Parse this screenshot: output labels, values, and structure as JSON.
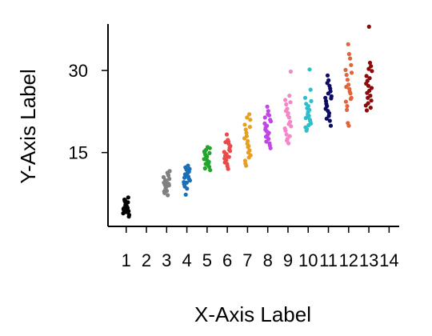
{
  "chart_data": {
    "type": "scatter",
    "title": "",
    "xlabel": "X-Axis Label",
    "ylabel": "Y-Axis Label",
    "xlim": [
      0.1,
      14.5
    ],
    "ylim": [
      1.5,
      38.5
    ],
    "x_ticks": [
      1,
      2,
      3,
      4,
      5,
      6,
      7,
      8,
      9,
      10,
      11,
      12,
      13,
      14
    ],
    "y_ticks": [
      15,
      30
    ],
    "grid": false,
    "jitter_width": 0.3,
    "series": [
      {
        "x": 1,
        "color": "#000000",
        "values": [
          3.9,
          4.3,
          4.8,
          5.2,
          5.6,
          6.1,
          4.5,
          3.6,
          6.8,
          5.0,
          4.1,
          5.4,
          6.4,
          4.7,
          3.3,
          5.9,
          4.4,
          5.1,
          6.3,
          4.9
        ]
      },
      {
        "x": 3,
        "color": "#808080",
        "values": [
          7.2,
          8.0,
          8.6,
          9.1,
          9.5,
          10.2,
          10.8,
          11.3,
          9.8,
          8.3,
          7.6,
          10.5,
          9.0,
          11.0,
          8.9,
          9.6,
          10.0,
          7.9,
          11.6,
          9.3
        ]
      },
      {
        "x": 4,
        "color": "#1a6fb5",
        "values": [
          7.3,
          8.8,
          9.6,
          10.1,
          10.6,
          11.2,
          11.9,
          12.3,
          10.4,
          9.9,
          11.5,
          12.6,
          8.4,
          10.8,
          11.0,
          9.2,
          12.0,
          10.3,
          11.4,
          9.5
        ]
      },
      {
        "x": 5,
        "color": "#22a52a",
        "values": [
          11.8,
          12.4,
          13.0,
          13.5,
          14.0,
          14.6,
          15.2,
          15.8,
          13.3,
          12.7,
          14.3,
          15.5,
          12.1,
          13.8,
          14.9,
          13.1,
          16.0,
          14.1,
          12.9,
          15.0
        ]
      },
      {
        "x": 6,
        "color": "#ec4a4a",
        "values": [
          12.0,
          12.9,
          13.6,
          14.4,
          15.1,
          15.9,
          16.6,
          17.3,
          18.3,
          14.0,
          13.2,
          16.2,
          15.5,
          17.0,
          12.5,
          14.7,
          16.9,
          13.9,
          15.3,
          14.2
        ]
      },
      {
        "x": 7,
        "color": "#e5a024",
        "values": [
          12.6,
          13.5,
          14.5,
          15.4,
          16.2,
          17.1,
          18.0,
          19.2,
          20.1,
          21.0,
          22.0,
          15.0,
          16.6,
          18.6,
          13.0,
          17.6,
          19.7,
          14.1,
          16.0,
          21.4
        ]
      },
      {
        "x": 8,
        "color": "#c246e6",
        "values": [
          15.8,
          16.7,
          17.5,
          18.2,
          18.9,
          19.6,
          20.3,
          21.0,
          21.8,
          22.6,
          23.4,
          17.0,
          19.2,
          20.7,
          16.3,
          18.6,
          22.0,
          19.9,
          17.9,
          21.4
        ]
      },
      {
        "x": 9,
        "color": "#f487c9",
        "values": [
          16.7,
          17.5,
          18.3,
          19.0,
          19.8,
          20.6,
          21.4,
          22.2,
          23.0,
          23.8,
          24.6,
          29.8,
          18.0,
          20.2,
          21.8,
          17.2,
          22.6,
          19.4,
          24.2,
          25.4
        ]
      },
      {
        "x": 10,
        "color": "#2ebfca",
        "values": [
          19.0,
          19.6,
          20.3,
          21.0,
          21.7,
          22.4,
          23.1,
          23.9,
          25.0,
          26.5,
          30.2,
          20.0,
          22.0,
          19.3,
          21.3,
          24.4,
          20.7,
          22.8,
          23.5,
          21.5
        ]
      },
      {
        "x": 11,
        "color": "#0d0b63",
        "values": [
          19.9,
          20.8,
          21.7,
          22.6,
          23.5,
          24.4,
          25.3,
          26.2,
          27.2,
          28.2,
          29.1,
          21.2,
          23.0,
          24.9,
          26.7,
          22.2,
          25.8,
          27.7,
          23.9,
          25.0
        ]
      },
      {
        "x": 12,
        "color": "#e0643c",
        "values": [
          19.9,
          20.4,
          22.8,
          24.3,
          25.0,
          25.8,
          26.6,
          27.4,
          28.3,
          29.2,
          30.1,
          31.0,
          32.2,
          33.0,
          34.8,
          23.5,
          27.0,
          29.6,
          24.8,
          26.1
        ]
      },
      {
        "x": 13,
        "color": "#8b0a0a",
        "values": [
          22.7,
          23.6,
          24.5,
          25.4,
          26.3,
          27.2,
          28.1,
          29.0,
          29.9,
          30.8,
          31.4,
          38.0,
          24.0,
          25.9,
          27.6,
          26.8,
          23.2,
          28.6,
          30.3,
          25.0
        ]
      }
    ]
  }
}
